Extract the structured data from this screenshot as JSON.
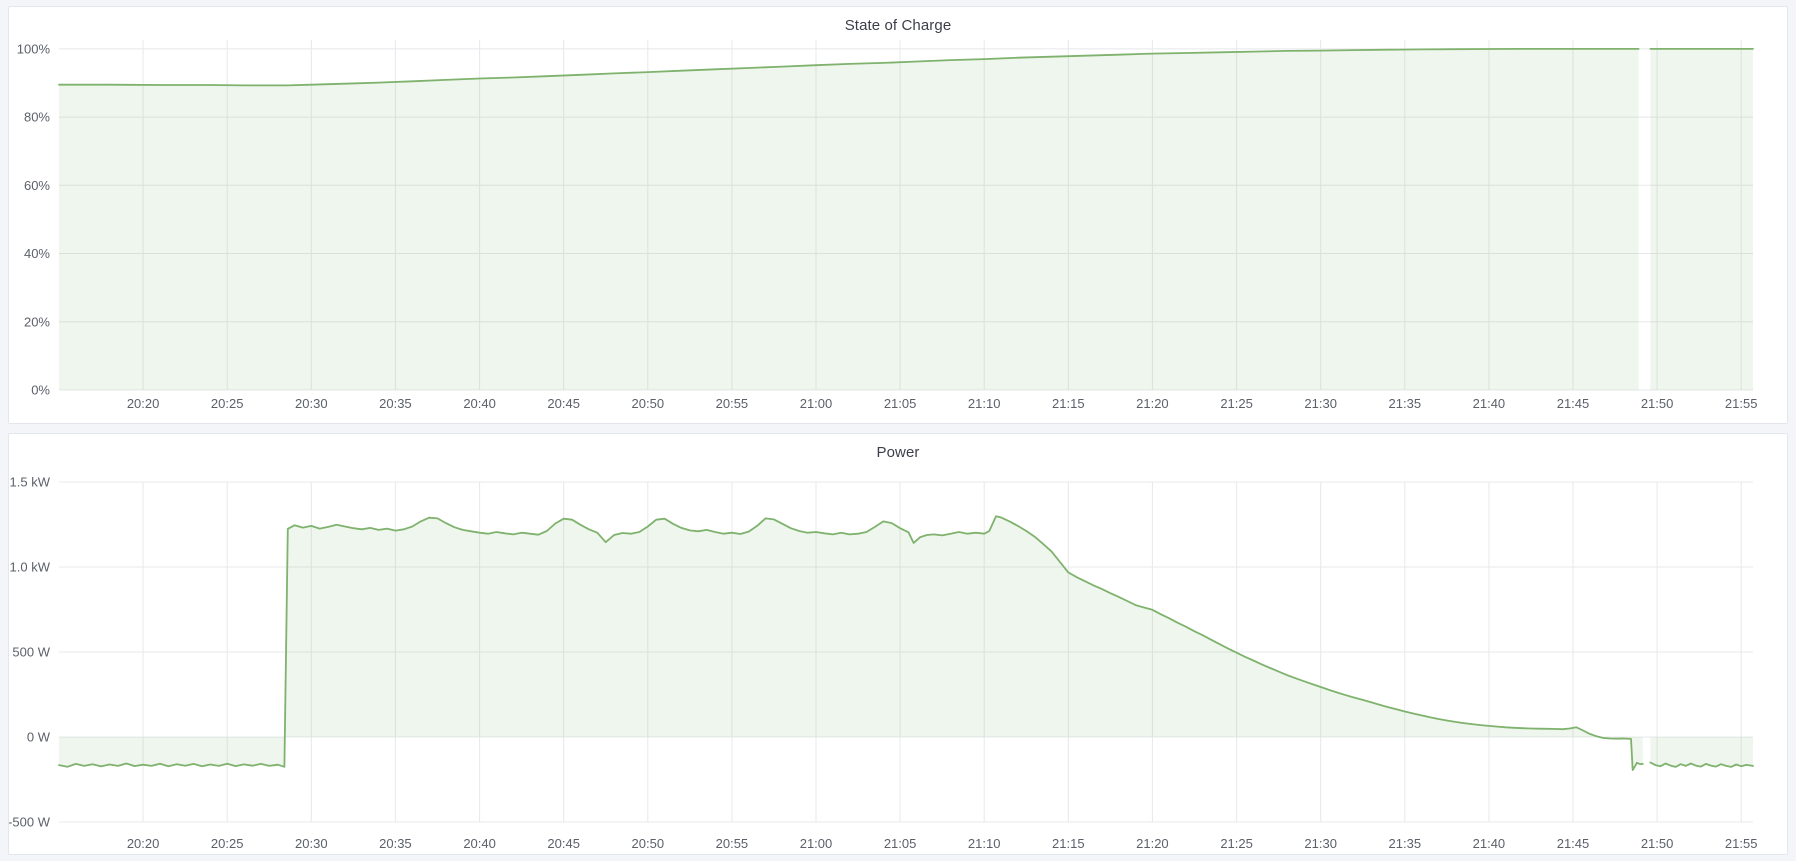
{
  "theme": {
    "background": "#f4f5f9",
    "panel_background": "#ffffff",
    "panel_border": "#e4e6ed",
    "title_color": "#3c3f48",
    "axis_text_color": "#5c6069",
    "grid_color": "#e7e8eb"
  },
  "chart_data": [
    {
      "type": "area",
      "title": "State of Charge",
      "ylabel": "",
      "xlabel": "",
      "unit": "percent",
      "grid": true,
      "legend": false,
      "line_color": "#7eb26d",
      "fill_color": "rgba(126,178,109,0.12)",
      "baseline": 0,
      "xlim": [
        15,
        115.7
      ],
      "ylim": [
        0,
        102.6
      ],
      "x_ticks": [
        {
          "m": 20,
          "label": "20:20"
        },
        {
          "m": 25,
          "label": "20:25"
        },
        {
          "m": 30,
          "label": "20:30"
        },
        {
          "m": 35,
          "label": "20:35"
        },
        {
          "m": 40,
          "label": "20:40"
        },
        {
          "m": 45,
          "label": "20:45"
        },
        {
          "m": 50,
          "label": "20:50"
        },
        {
          "m": 55,
          "label": "20:55"
        },
        {
          "m": 60,
          "label": "21:00"
        },
        {
          "m": 65,
          "label": "21:05"
        },
        {
          "m": 70,
          "label": "21:10"
        },
        {
          "m": 75,
          "label": "21:15"
        },
        {
          "m": 80,
          "label": "21:20"
        },
        {
          "m": 85,
          "label": "21:25"
        },
        {
          "m": 90,
          "label": "21:30"
        },
        {
          "m": 95,
          "label": "21:35"
        },
        {
          "m": 100,
          "label": "21:40"
        },
        {
          "m": 105,
          "label": "21:45"
        },
        {
          "m": 110,
          "label": "21:50"
        },
        {
          "m": 115,
          "label": "21:55"
        }
      ],
      "y_ticks": [
        {
          "v": 0,
          "label": "0%"
        },
        {
          "v": 20,
          "label": "20%"
        },
        {
          "v": 40,
          "label": "40%"
        },
        {
          "v": 60,
          "label": "60%"
        },
        {
          "v": 80,
          "label": "80%"
        },
        {
          "v": 100,
          "label": "100%"
        }
      ],
      "points": [
        [
          15,
          89.5
        ],
        [
          18,
          89.5
        ],
        [
          21,
          89.4
        ],
        [
          24,
          89.4
        ],
        [
          26,
          89.3
        ],
        [
          28.6,
          89.3
        ],
        [
          30,
          89.5
        ],
        [
          32,
          89.8
        ],
        [
          34,
          90.1
        ],
        [
          36,
          90.5
        ],
        [
          38,
          90.9
        ],
        [
          40,
          91.3
        ],
        [
          42,
          91.6
        ],
        [
          44,
          92
        ],
        [
          46,
          92.4
        ],
        [
          48,
          92.8
        ],
        [
          50,
          93.2
        ],
        [
          52,
          93.6
        ],
        [
          54,
          94
        ],
        [
          56,
          94.4
        ],
        [
          58,
          94.8
        ],
        [
          60,
          95.2
        ],
        [
          62,
          95.6
        ],
        [
          64,
          95.9
        ],
        [
          66,
          96.3
        ],
        [
          68,
          96.7
        ],
        [
          70,
          97
        ],
        [
          72,
          97.4
        ],
        [
          74,
          97.7
        ],
        [
          76,
          98
        ],
        [
          78,
          98.3
        ],
        [
          80,
          98.6
        ],
        [
          82,
          98.8
        ],
        [
          84,
          99
        ],
        [
          86,
          99.2
        ],
        [
          88,
          99.4
        ],
        [
          90,
          99.5
        ],
        [
          92,
          99.65
        ],
        [
          94,
          99.75
        ],
        [
          96,
          99.85
        ],
        [
          98,
          99.9
        ],
        [
          100,
          99.95
        ],
        [
          102,
          100
        ],
        [
          105,
          100
        ],
        [
          108.9,
          100
        ],
        [
          109.25,
          null
        ],
        [
          109.6,
          100
        ],
        [
          112,
          100
        ],
        [
          115.7,
          100
        ]
      ]
    },
    {
      "type": "area",
      "title": "Power",
      "ylabel": "",
      "xlabel": "",
      "unit": "watt",
      "grid": true,
      "legend": false,
      "line_color": "#7eb26d",
      "fill_color": "rgba(126,178,109,0.12)",
      "baseline": 0,
      "xlim": [
        15,
        115.7
      ],
      "ylim": [
        -500,
        1500
      ],
      "x_ticks": [
        {
          "m": 20,
          "label": "20:20"
        },
        {
          "m": 25,
          "label": "20:25"
        },
        {
          "m": 30,
          "label": "20:30"
        },
        {
          "m": 35,
          "label": "20:35"
        },
        {
          "m": 40,
          "label": "20:40"
        },
        {
          "m": 45,
          "label": "20:45"
        },
        {
          "m": 50,
          "label": "20:50"
        },
        {
          "m": 55,
          "label": "20:55"
        },
        {
          "m": 60,
          "label": "21:00"
        },
        {
          "m": 65,
          "label": "21:05"
        },
        {
          "m": 70,
          "label": "21:10"
        },
        {
          "m": 75,
          "label": "21:15"
        },
        {
          "m": 80,
          "label": "21:20"
        },
        {
          "m": 85,
          "label": "21:25"
        },
        {
          "m": 90,
          "label": "21:30"
        },
        {
          "m": 95,
          "label": "21:35"
        },
        {
          "m": 100,
          "label": "21:40"
        },
        {
          "m": 105,
          "label": "21:45"
        },
        {
          "m": 110,
          "label": "21:50"
        },
        {
          "m": 115,
          "label": "21:55"
        }
      ],
      "y_ticks": [
        {
          "v": -500,
          "label": "-500 W"
        },
        {
          "v": 0,
          "label": "0 W"
        },
        {
          "v": 500,
          "label": "500 W"
        },
        {
          "v": 1000,
          "label": "1.0 kW"
        },
        {
          "v": 1500,
          "label": "1.5 kW"
        }
      ],
      "points": [
        [
          15,
          -165
        ],
        [
          15.5,
          -175
        ],
        [
          16,
          -158
        ],
        [
          16.5,
          -170
        ],
        [
          17,
          -160
        ],
        [
          17.5,
          -173
        ],
        [
          18,
          -162
        ],
        [
          18.5,
          -170
        ],
        [
          19,
          -156
        ],
        [
          19.5,
          -171
        ],
        [
          20,
          -163
        ],
        [
          20.5,
          -170
        ],
        [
          21,
          -157
        ],
        [
          21.5,
          -172
        ],
        [
          22,
          -160
        ],
        [
          22.5,
          -169
        ],
        [
          23,
          -158
        ],
        [
          23.5,
          -172
        ],
        [
          24,
          -162
        ],
        [
          24.5,
          -170
        ],
        [
          25,
          -157
        ],
        [
          25.5,
          -171
        ],
        [
          26,
          -161
        ],
        [
          26.5,
          -169
        ],
        [
          27,
          -158
        ],
        [
          27.5,
          -170
        ],
        [
          28,
          -163
        ],
        [
          28.4,
          -175
        ],
        [
          28.6,
          1225
        ],
        [
          29,
          1245
        ],
        [
          29.5,
          1232
        ],
        [
          30,
          1242
        ],
        [
          30.5,
          1226
        ],
        [
          31,
          1236
        ],
        [
          31.5,
          1248
        ],
        [
          32,
          1238
        ],
        [
          32.5,
          1228
        ],
        [
          33,
          1222
        ],
        [
          33.5,
          1230
        ],
        [
          34,
          1218
        ],
        [
          34.5,
          1226
        ],
        [
          35,
          1214
        ],
        [
          35.5,
          1222
        ],
        [
          36,
          1238
        ],
        [
          36.5,
          1268
        ],
        [
          37,
          1290
        ],
        [
          37.5,
          1286
        ],
        [
          38,
          1258
        ],
        [
          38.5,
          1234
        ],
        [
          39,
          1218
        ],
        [
          39.5,
          1210
        ],
        [
          40,
          1202
        ],
        [
          40.5,
          1196
        ],
        [
          41,
          1206
        ],
        [
          41.5,
          1198
        ],
        [
          42,
          1192
        ],
        [
          42.5,
          1202
        ],
        [
          43,
          1196
        ],
        [
          43.5,
          1190
        ],
        [
          44,
          1212
        ],
        [
          44.5,
          1256
        ],
        [
          45,
          1284
        ],
        [
          45.5,
          1278
        ],
        [
          46,
          1248
        ],
        [
          46.5,
          1222
        ],
        [
          47,
          1202
        ],
        [
          47.5,
          1146
        ],
        [
          48,
          1188
        ],
        [
          48.5,
          1200
        ],
        [
          49,
          1196
        ],
        [
          49.5,
          1206
        ],
        [
          50,
          1238
        ],
        [
          50.5,
          1278
        ],
        [
          51,
          1284
        ],
        [
          51.5,
          1254
        ],
        [
          52,
          1230
        ],
        [
          52.5,
          1215
        ],
        [
          53,
          1210
        ],
        [
          53.5,
          1218
        ],
        [
          54,
          1206
        ],
        [
          54.5,
          1196
        ],
        [
          55,
          1202
        ],
        [
          55.5,
          1194
        ],
        [
          56,
          1208
        ],
        [
          56.5,
          1242
        ],
        [
          57,
          1286
        ],
        [
          57.5,
          1280
        ],
        [
          58,
          1254
        ],
        [
          58.5,
          1228
        ],
        [
          59,
          1212
        ],
        [
          59.5,
          1202
        ],
        [
          60,
          1206
        ],
        [
          60.5,
          1198
        ],
        [
          61,
          1192
        ],
        [
          61.5,
          1202
        ],
        [
          62,
          1192
        ],
        [
          62.5,
          1196
        ],
        [
          63,
          1206
        ],
        [
          63.5,
          1236
        ],
        [
          64,
          1268
        ],
        [
          64.5,
          1258
        ],
        [
          65,
          1228
        ],
        [
          65.5,
          1204
        ],
        [
          65.8,
          1142
        ],
        [
          66.2,
          1176
        ],
        [
          66.6,
          1188
        ],
        [
          67,
          1192
        ],
        [
          67.5,
          1186
        ],
        [
          68,
          1196
        ],
        [
          68.5,
          1206
        ],
        [
          69,
          1196
        ],
        [
          69.5,
          1202
        ],
        [
          70,
          1196
        ],
        [
          70.3,
          1212
        ],
        [
          70.7,
          1298
        ],
        [
          71,
          1292
        ],
        [
          71.5,
          1268
        ],
        [
          72,
          1242
        ],
        [
          72.5,
          1212
        ],
        [
          73,
          1178
        ],
        [
          73.5,
          1136
        ],
        [
          74,
          1092
        ],
        [
          74.5,
          1030
        ],
        [
          75,
          968
        ],
        [
          75.5,
          940
        ],
        [
          76,
          916
        ],
        [
          76.5,
          892
        ],
        [
          77,
          870
        ],
        [
          77.5,
          846
        ],
        [
          78,
          824
        ],
        [
          78.5,
          800
        ],
        [
          79,
          776
        ],
        [
          79.5,
          762
        ],
        [
          80,
          748
        ],
        [
          80.5,
          722
        ],
        [
          81,
          698
        ],
        [
          81.5,
          672
        ],
        [
          82,
          648
        ],
        [
          82.5,
          622
        ],
        [
          83,
          598
        ],
        [
          83.5,
          572
        ],
        [
          84,
          546
        ],
        [
          84.5,
          520
        ],
        [
          85,
          496
        ],
        [
          85.5,
          472
        ],
        [
          86,
          450
        ],
        [
          86.5,
          427
        ],
        [
          87,
          406
        ],
        [
          87.5,
          385
        ],
        [
          88,
          364
        ],
        [
          88.5,
          346
        ],
        [
          89,
          328
        ],
        [
          89.5,
          311
        ],
        [
          90,
          294
        ],
        [
          90.5,
          277
        ],
        [
          91,
          261
        ],
        [
          91.5,
          246
        ],
        [
          92,
          232
        ],
        [
          92.5,
          218
        ],
        [
          93,
          204
        ],
        [
          93.5,
          190
        ],
        [
          94,
          176
        ],
        [
          94.5,
          163
        ],
        [
          95,
          150
        ],
        [
          95.5,
          138
        ],
        [
          96,
          127
        ],
        [
          96.5,
          116
        ],
        [
          97,
          106
        ],
        [
          97.5,
          97
        ],
        [
          98,
          89
        ],
        [
          98.5,
          82
        ],
        [
          99,
          76
        ],
        [
          99.5,
          70
        ],
        [
          100,
          65
        ],
        [
          100.5,
          61
        ],
        [
          101,
          57
        ],
        [
          101.5,
          54
        ],
        [
          102,
          52
        ],
        [
          102.5,
          50
        ],
        [
          103,
          49
        ],
        [
          103.5,
          48
        ],
        [
          104,
          47
        ],
        [
          104.4,
          46
        ],
        [
          104.8,
          50
        ],
        [
          105.2,
          57
        ],
        [
          105.6,
          38
        ],
        [
          106,
          18
        ],
        [
          106.4,
          4
        ],
        [
          106.8,
          -6
        ],
        [
          107.2,
          -9
        ],
        [
          107.6,
          -10
        ],
        [
          108,
          -9
        ],
        [
          108.45,
          -11
        ],
        [
          108.55,
          -195
        ],
        [
          108.7,
          -170
        ],
        [
          108.8,
          -152
        ],
        [
          109,
          -160
        ],
        [
          109.15,
          -158
        ],
        [
          109.25,
          null
        ],
        [
          109.6,
          -150
        ],
        [
          109.9,
          -165
        ],
        [
          110.2,
          -172
        ],
        [
          110.5,
          -156
        ],
        [
          110.8,
          -168
        ],
        [
          111.1,
          -176
        ],
        [
          111.4,
          -160
        ],
        [
          111.7,
          -170
        ],
        [
          112,
          -156
        ],
        [
          112.3,
          -168
        ],
        [
          112.6,
          -174
        ],
        [
          112.9,
          -158
        ],
        [
          113.2,
          -168
        ],
        [
          113.5,
          -174
        ],
        [
          113.8,
          -160
        ],
        [
          114.1,
          -170
        ],
        [
          114.4,
          -176
        ],
        [
          114.7,
          -162
        ],
        [
          115,
          -172
        ],
        [
          115.3,
          -164
        ],
        [
          115.7,
          -170
        ]
      ]
    }
  ]
}
